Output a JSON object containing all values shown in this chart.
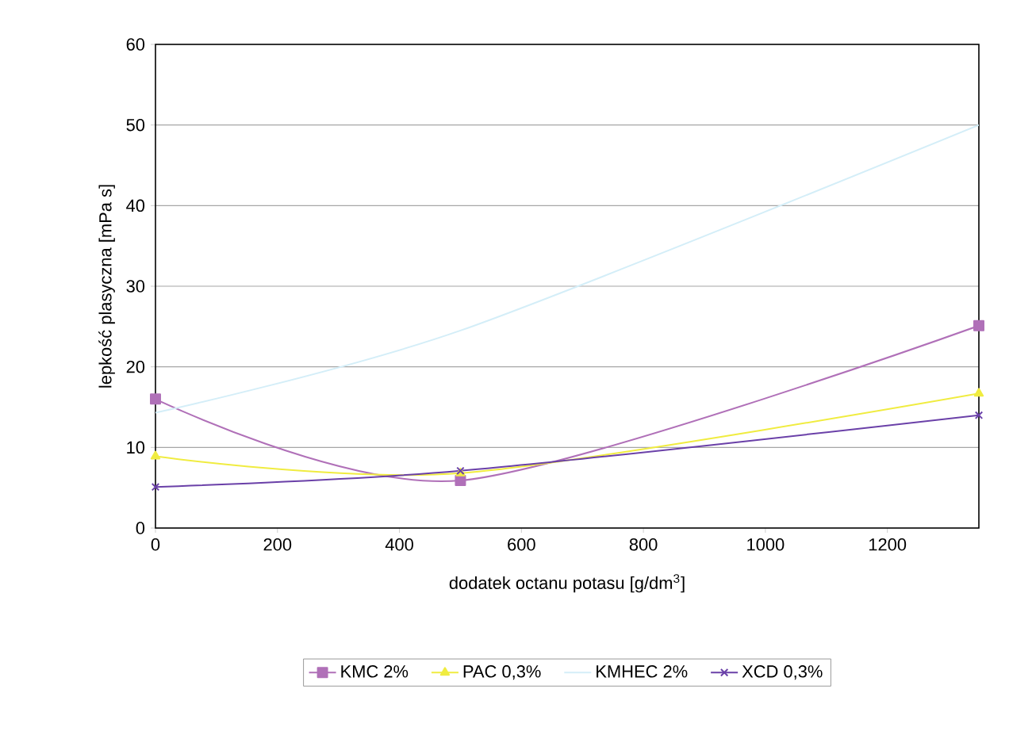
{
  "chart_data": {
    "type": "line",
    "xlabel": "dodatek octanu potasu [g/dm$^{3}$]",
    "ylabel": "lepkość plasyczna [mPa s]",
    "x": [
      0,
      500,
      1350
    ],
    "series": [
      {
        "name": "KMC 2%",
        "color": "#b070b8",
        "marker": "square",
        "values": [
          16.0,
          5.9,
          25.1
        ]
      },
      {
        "name": "PAC 0,3%",
        "color": "#f0ec40",
        "marker": "triangle",
        "values": [
          8.9,
          6.8,
          16.7
        ]
      },
      {
        "name": "KMHEC 2%",
        "color": "#d4eef8",
        "marker": "none",
        "values": [
          14.3,
          24.5,
          50
        ]
      },
      {
        "name": "XCD 0,3%",
        "color": "#6a40a8",
        "marker": "cross",
        "values": [
          5.1,
          7.1,
          14.0
        ]
      }
    ],
    "xlim": [
      0,
      1350
    ],
    "ylim": [
      0,
      60
    ],
    "xticks": [
      0,
      200,
      400,
      600,
      800,
      1000,
      1200
    ],
    "yticks": [
      0,
      10,
      20,
      30,
      40,
      50,
      60
    ],
    "grid": "y",
    "legend": "bottom"
  }
}
